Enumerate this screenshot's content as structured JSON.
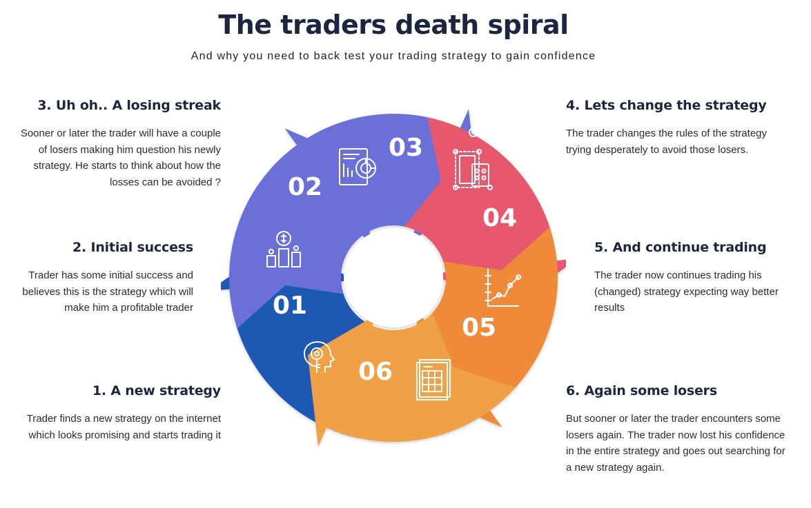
{
  "title": "The traders death spiral",
  "subtitle": "And why you need to back test your trading strategy to gain confidence",
  "colors": {
    "step01": "#1c58b4",
    "step02": "#6a6fd8",
    "step03": "#6a6fd8",
    "step04": "#e8596d",
    "step05": "#ef8a3a",
    "step06": "#f0a045",
    "title": "#1d2540"
  },
  "steps": [
    {
      "number": "01",
      "heading": "1. A new strategy",
      "text": "Trader finds a new strategy on the internet which looks promising and starts trading it",
      "icon": "head-key-icon"
    },
    {
      "number": "02",
      "heading": "2. Initial success",
      "text": "Trader has some initial success and believes this is the strategy which will make him a profitable trader",
      "icon": "money-growth-icon"
    },
    {
      "number": "03",
      "heading": "3. Uh oh.. A losing streak",
      "text": "Sooner or later the trader will have a couple of losers making him question his newly strategy. He starts to think about how the losses can be avoided ?",
      "icon": "report-chart-icon"
    },
    {
      "number": "04",
      "heading": "4. Lets change the strategy",
      "text": "The trader changes the rules of the strategy trying desperately to avoid those losers.",
      "icon": "calculator-diagram-icon"
    },
    {
      "number": "05",
      "heading": "5. And continue trading",
      "text": "The trader now continues trading his (changed) strategy expecting way better results",
      "icon": "line-graph-icon"
    },
    {
      "number": "06",
      "heading": "6. Again some losers",
      "text": "But sooner or later the trader encounters some losers again. The trader now lost his confidence in the entire strategy and goes out searching for a new strategy again.",
      "icon": "spreadsheet-icon"
    }
  ]
}
